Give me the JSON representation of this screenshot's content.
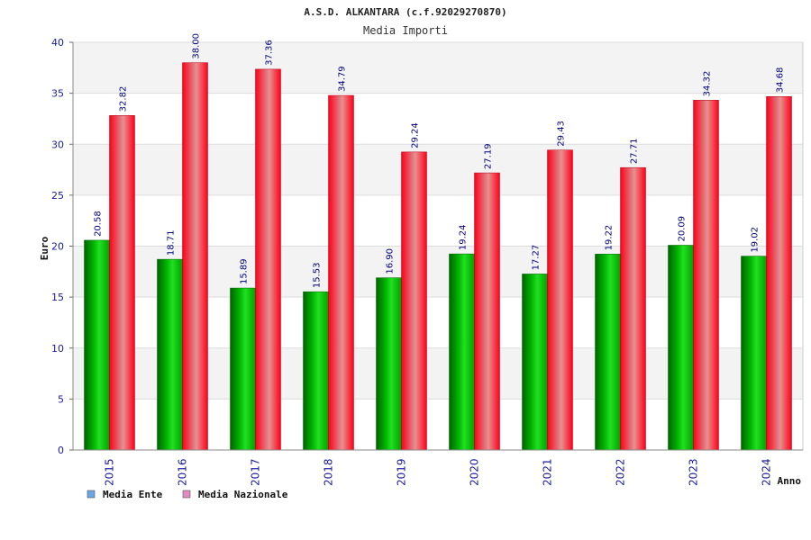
{
  "chart_data": {
    "type": "bar",
    "title": "A.S.D. ALKANTARA (c.f.92029270870)",
    "subtitle": "Media Importi",
    "xlabel": "Anno",
    "ylabel": "Euro",
    "ylim": [
      0,
      40
    ],
    "yticks": [
      0,
      5,
      10,
      15,
      20,
      25,
      30,
      35,
      40
    ],
    "categories": [
      "2015",
      "2016",
      "2017",
      "2018",
      "2019",
      "2020",
      "2021",
      "2022",
      "2023",
      "2024"
    ],
    "series": [
      {
        "name": "Media Ente",
        "values": [
          20.58,
          18.71,
          15.89,
          15.53,
          16.9,
          19.24,
          17.27,
          19.22,
          20.09,
          19.02
        ],
        "labels": [
          "20.58",
          "18.71",
          "15.89",
          "15.53",
          "16.90",
          "19.24",
          "17.27",
          "19.22",
          "20.09",
          "19.02"
        ],
        "color": "#00a000",
        "legend_color": "#6aa7e8"
      },
      {
        "name": "Media Nazionale",
        "values": [
          32.82,
          38.0,
          37.36,
          34.79,
          29.24,
          27.19,
          29.43,
          27.71,
          34.32,
          34.68
        ],
        "labels": [
          "32.82",
          "38.00",
          "37.36",
          "34.79",
          "29.24",
          "27.19",
          "29.43",
          "27.71",
          "34.32",
          "34.68"
        ],
        "color": "#e8001a",
        "legend_color": "#e08cc0"
      }
    ],
    "grid": true,
    "legend_position": "bottom-left"
  }
}
